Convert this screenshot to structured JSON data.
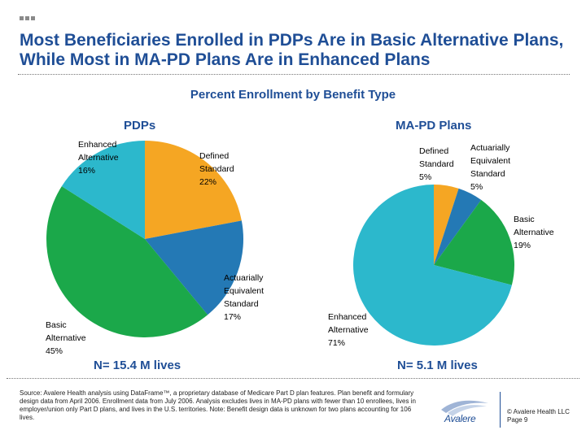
{
  "slide": {
    "title": "Most Beneficiaries Enrolled in PDPs Are in Basic Alternative Plans, While Most in MA-PD Plans Are in Enhanced Plans"
  },
  "colors": {
    "title": "#1f4e96",
    "defined_standard": "#f5a623",
    "actuarially_equivalent": "#2479b5",
    "basic_alternative": "#1ba84a",
    "enhanced_alternative": "#2cb8cc"
  },
  "chart_data": [
    {
      "type": "pie",
      "title": "Percent Enrollment by Benefit Type",
      "subtitle": "PDPs",
      "note": "N= 15.4 M lives",
      "slices": [
        {
          "label_lines": [
            "Defined",
            "Standard",
            "22%"
          ],
          "category": "Defined Standard",
          "value": 22,
          "color": "#f5a623"
        },
        {
          "label_lines": [
            "Actuarially",
            "Equivalent",
            "Standard",
            "17%"
          ],
          "category": "Actuarially Equivalent Standard",
          "value": 17,
          "color": "#2479b5"
        },
        {
          "label_lines": [
            "Basic",
            "Alternative",
            "45%"
          ],
          "category": "Basic Alternative",
          "value": 45,
          "color": "#1ba84a"
        },
        {
          "label_lines": [
            "Enhanced",
            "Alternative",
            "16%"
          ],
          "category": "Enhanced Alternative",
          "value": 16,
          "color": "#2cb8cc"
        }
      ]
    },
    {
      "type": "pie",
      "title": "Percent Enrollment by Benefit Type",
      "subtitle": "MA-PD Plans",
      "note": "N= 5.1 M lives",
      "slices": [
        {
          "label_lines": [
            "Defined",
            "Standard",
            "5%"
          ],
          "category": "Defined Standard",
          "value": 5,
          "color": "#f5a623"
        },
        {
          "label_lines": [
            "Actuarially",
            "Equivalent",
            "Standard",
            "5%"
          ],
          "category": "Actuarially Equivalent Standard",
          "value": 5,
          "color": "#2479b5"
        },
        {
          "label_lines": [
            "Basic",
            "Alternative",
            "19%"
          ],
          "category": "Basic Alternative",
          "value": 19,
          "color": "#1ba84a"
        },
        {
          "label_lines": [
            "Enhanced",
            "Alternative",
            "71%"
          ],
          "category": "Enhanced Alternative",
          "value": 71,
          "color": "#2cb8cc"
        }
      ]
    }
  ],
  "footer": {
    "source": "Source: Avalere Health analysis using DataFrame™, a proprietary database of Medicare Part D plan features. Plan benefit and formulary design data from April 2006. Enrollment data from July 2006. Analysis excludes lives in MA-PD plans with fewer than 10 enrollees, lives in employer/union only Part D plans, and lives in the U.S. territories. Note: Benefit design data is unknown for two plans accounting for 106 lives.",
    "logo_text": "Avalere",
    "copyright": "© Avalere Health LLC",
    "page": "Page 9"
  }
}
